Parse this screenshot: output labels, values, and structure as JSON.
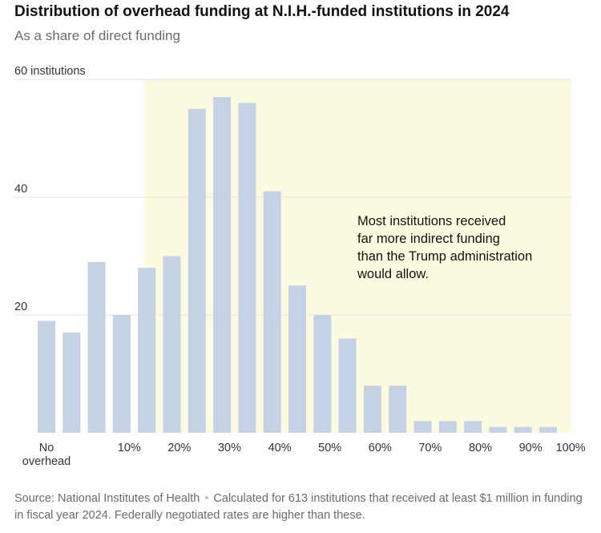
{
  "title": "Distribution of overhead funding at N.I.H.-funded institutions in 2024",
  "subtitle": "As a share of direct funding",
  "footer": {
    "source": "Source: National Institutes of Health",
    "note": "Calculated for 613 institutions that received at least $1 million in funding in fiscal year 2024. Federally negotiated rates are higher than these."
  },
  "colors": {
    "bar": "#c5d2e5",
    "highlight": "#fdfbdf",
    "grid": "#e3e3e3"
  },
  "chart_data": {
    "type": "bar",
    "title": "Distribution of overhead funding at N.I.H.-funded institutions in 2024",
    "subtitle": "As a share of direct funding",
    "values": [
      19,
      17,
      29,
      20,
      28,
      30,
      55,
      57,
      56,
      41,
      25,
      20,
      16,
      8,
      8,
      2,
      2,
      2,
      1,
      1,
      1
    ],
    "x_tick_labels": [
      {
        "pos": 0,
        "lines": [
          "No",
          "overhead"
        ]
      },
      {
        "pos": 3.3,
        "lines": [
          "10%"
        ]
      },
      {
        "pos": 5.3,
        "lines": [
          "20%"
        ]
      },
      {
        "pos": 7.3,
        "lines": [
          "30%"
        ]
      },
      {
        "pos": 9.3,
        "lines": [
          "40%"
        ]
      },
      {
        "pos": 11.3,
        "lines": [
          "50%"
        ]
      },
      {
        "pos": 13.3,
        "lines": [
          "60%"
        ]
      },
      {
        "pos": 15.3,
        "lines": [
          "70%"
        ]
      },
      {
        "pos": 17.3,
        "lines": [
          "80%"
        ]
      },
      {
        "pos": 19.3,
        "lines": [
          "90%"
        ]
      },
      {
        "pos": 20.9,
        "lines": [
          "100%"
        ]
      }
    ],
    "y_ticks": [
      {
        "value": 60,
        "label": "60 institutions"
      },
      {
        "value": 40,
        "label": "40"
      },
      {
        "value": 20,
        "label": "20"
      }
    ],
    "ylim": [
      0,
      60
    ],
    "highlight_from_percent": 15,
    "highlight_to_percent": 100,
    "annotation": [
      "Most institutions received",
      "far more indirect funding",
      "than the Trump administration",
      "would allow."
    ],
    "grid": true
  }
}
